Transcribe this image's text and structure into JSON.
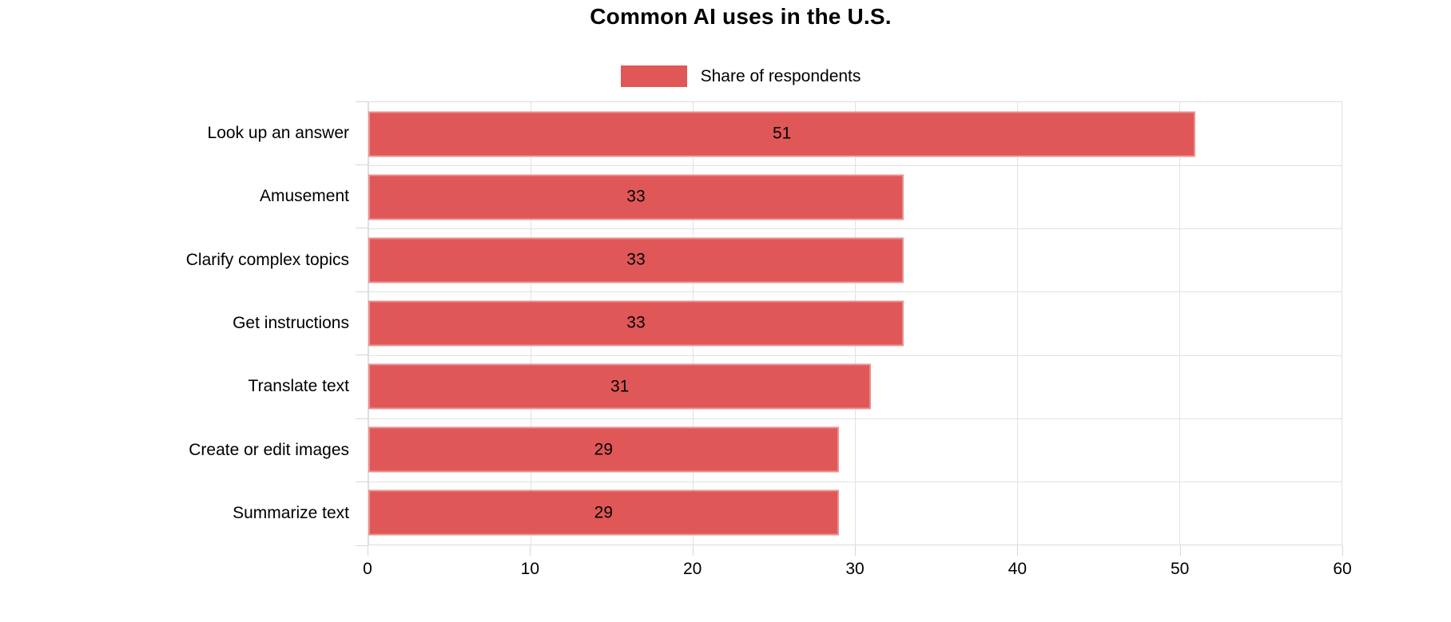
{
  "title": "Common AI uses in the U.S.",
  "legend": {
    "label": "Share of respondents",
    "swatch_color": "#e05757",
    "position": "top"
  },
  "colors": {
    "bar": "#e05757",
    "grid": "#e2e2e2",
    "tick": "#d6d6d6",
    "text": "#000000",
    "background": "#ffffff"
  },
  "chart_data": {
    "type": "bar",
    "orientation": "horizontal",
    "title": "Common AI uses in the U.S.",
    "series_name": "Share of respondents",
    "categories": [
      "Look up an answer",
      "Amusement",
      "Clarify complex topics",
      "Get instructions",
      "Translate text",
      "Create or edit images",
      "Summarize text"
    ],
    "values": [
      51,
      33,
      33,
      33,
      31,
      29,
      29
    ],
    "value_label_position": "inside-center",
    "xlabel": "",
    "ylabel": "",
    "xlim": [
      0,
      60
    ],
    "xticks": [
      0,
      10,
      20,
      30,
      40,
      50,
      60
    ],
    "grid": true,
    "legend_position": "top",
    "bar_color": "#e05757"
  }
}
